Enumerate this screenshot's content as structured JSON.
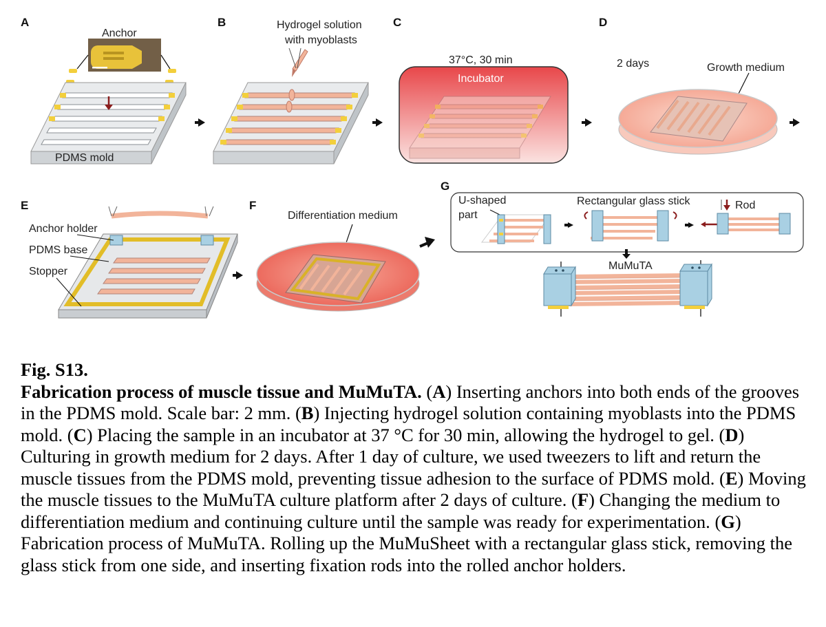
{
  "figure": {
    "panels": {
      "A": {
        "letter": "A",
        "anchor_label": "Anchor",
        "mold_label": "PDMS mold"
      },
      "B": {
        "letter": "B",
        "solution_label_1": "Hydrogel solution",
        "solution_label_2": "with myoblasts"
      },
      "C": {
        "letter": "C",
        "condition_label": "37°C, 30 min",
        "incubator_label": "Incubator"
      },
      "D": {
        "letter": "D",
        "time_label": "2 days",
        "medium_label": "Growth medium"
      },
      "E": {
        "letter": "E",
        "anchor_holder_label": "Anchor holder",
        "base_label": "PDMS base",
        "stopper_label": "Stopper"
      },
      "F": {
        "letter": "F",
        "medium_label": "Differentiation medium"
      },
      "G": {
        "letter": "G",
        "u_part_label_1": "U-shaped",
        "u_part_label_2": "part",
        "stick_label": "Rectangular glass stick",
        "rod_label": "Rod",
        "product_label": "MuMuTA"
      }
    },
    "colors": {
      "tissue": "#f2b49a",
      "anchor": "#f3cf3c",
      "medium": "#f4897b",
      "holder": "#a9d0e3",
      "arrow_red": "#8b1d1d"
    }
  },
  "caption": {
    "fig_number": "Fig. S13.",
    "title": "Fabrication process of muscle tissue and MuMuTA.",
    "items": [
      {
        "tag": "A",
        "text": " Inserting anchors into both ends of the grooves in the PDMS mold. Scale bar: 2 mm."
      },
      {
        "tag": "B",
        "text": " Injecting hydrogel solution containing myoblasts into the PDMS mold."
      },
      {
        "tag": "C",
        "text": " Placing the sample in an incubator at 37 °C for 30 min, allowing the hydrogel to gel."
      },
      {
        "tag": "D",
        "text": " Culturing in growth medium for 2 days. After 1 day of culture, we used tweezers to lift and return the muscle tissues from the PDMS mold, preventing tissue adhesion to the surface of PDMS mold."
      },
      {
        "tag": "E",
        "text": " Moving the muscle tissues to the MuMuTA culture platform after 2 days of culture."
      },
      {
        "tag": "F",
        "text": " Changing the medium to differentiation medium and continuing culture until the sample was ready for experimentation."
      },
      {
        "tag": "G",
        "text": " Fabrication process of MuMuTA. Rolling up the MuMuSheet with a rectangular glass stick, removing the glass stick from one side, and inserting fixation rods into the rolled anchor holders."
      }
    ]
  }
}
